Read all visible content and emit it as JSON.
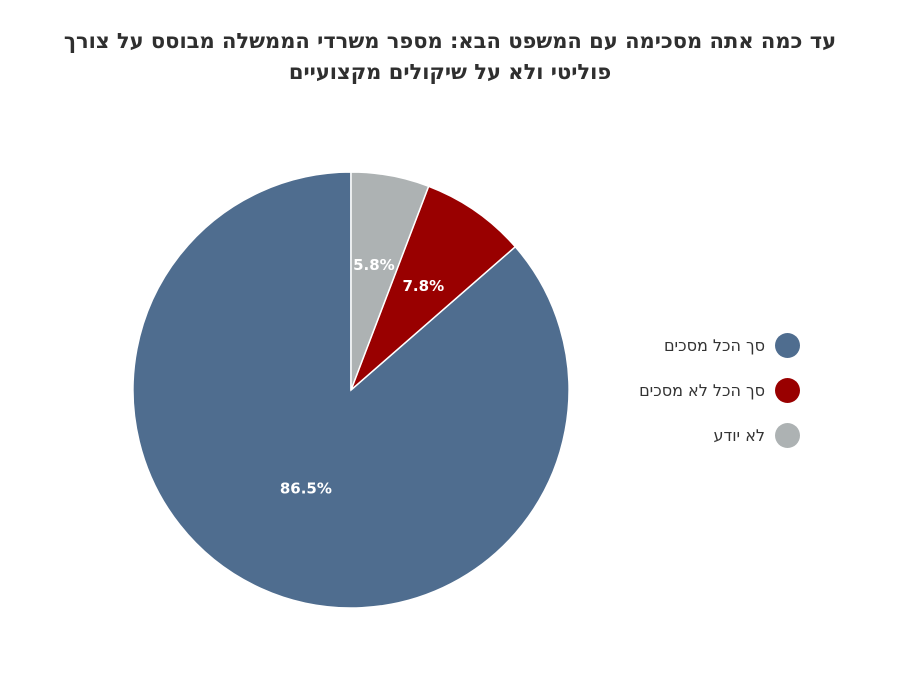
{
  "chart_data": {
    "type": "pie",
    "title_lines": [
      "עד כמה אתה מסכימה עם המשפט הבא: מספר משרדי הממשלה מבוסס על צורך",
      "פוליטי ולא על שיקולים מקצועיים"
    ],
    "slices": [
      {
        "label": "סך הכל מסכים",
        "value": 86.5,
        "value_label": "86.5%",
        "color": "#4f6d8f"
      },
      {
        "label": "סך הכל לא מסכים",
        "value": 7.8,
        "value_label": "7.8%",
        "color": "#990000"
      },
      {
        "label": "לא יודע",
        "value": 5.8,
        "value_label": "5.8%",
        "color": "#adb2b3"
      }
    ],
    "start": "12 o'clock",
    "direction": "counterclockwise",
    "legend_position": "right"
  }
}
